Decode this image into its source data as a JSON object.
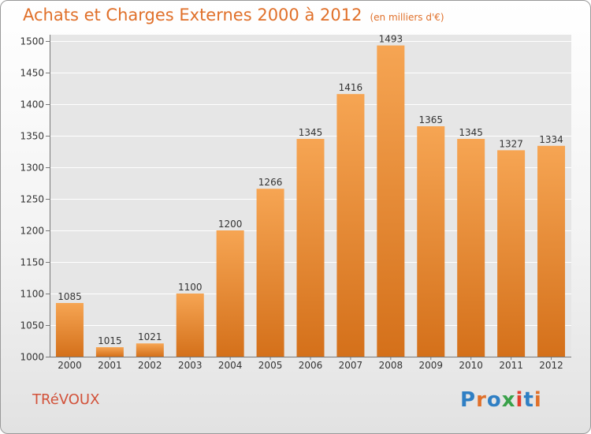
{
  "header": {
    "title": "Achats et Charges Externes 2000 à 2012",
    "subtitle": "(en milliers d'€)"
  },
  "footer": {
    "commune": "TRéVOUX",
    "brand": "Proxiti"
  },
  "colors": {
    "title": "#e0702a",
    "bar_top": "#f6a553",
    "bar_bottom": "#d4701a",
    "plot_bg": "#e6e6e6",
    "grid": "#ffffff",
    "logo_letters": [
      "#2f7fc4",
      "#e0702a",
      "#2f7fc4",
      "#3aa14a",
      "#e33e2e",
      "#2f7fc4",
      "#e0702a"
    ]
  },
  "chart_data": {
    "type": "bar",
    "title": "Achats et Charges Externes 2000 à 2012",
    "subtitle": "(en milliers d'€)",
    "xlabel": "",
    "ylabel": "",
    "categories": [
      "2000",
      "2001",
      "2002",
      "2003",
      "2004",
      "2005",
      "2006",
      "2007",
      "2008",
      "2009",
      "2010",
      "2011",
      "2012"
    ],
    "values": [
      1085,
      1015,
      1021,
      1100,
      1200,
      1266,
      1345,
      1416,
      1493,
      1365,
      1345,
      1327,
      1334
    ],
    "ylim": [
      1000,
      1510
    ],
    "yticks": [
      1000,
      1050,
      1100,
      1150,
      1200,
      1250,
      1300,
      1350,
      1400,
      1450,
      1500
    ],
    "grid": true,
    "legend": "none"
  }
}
